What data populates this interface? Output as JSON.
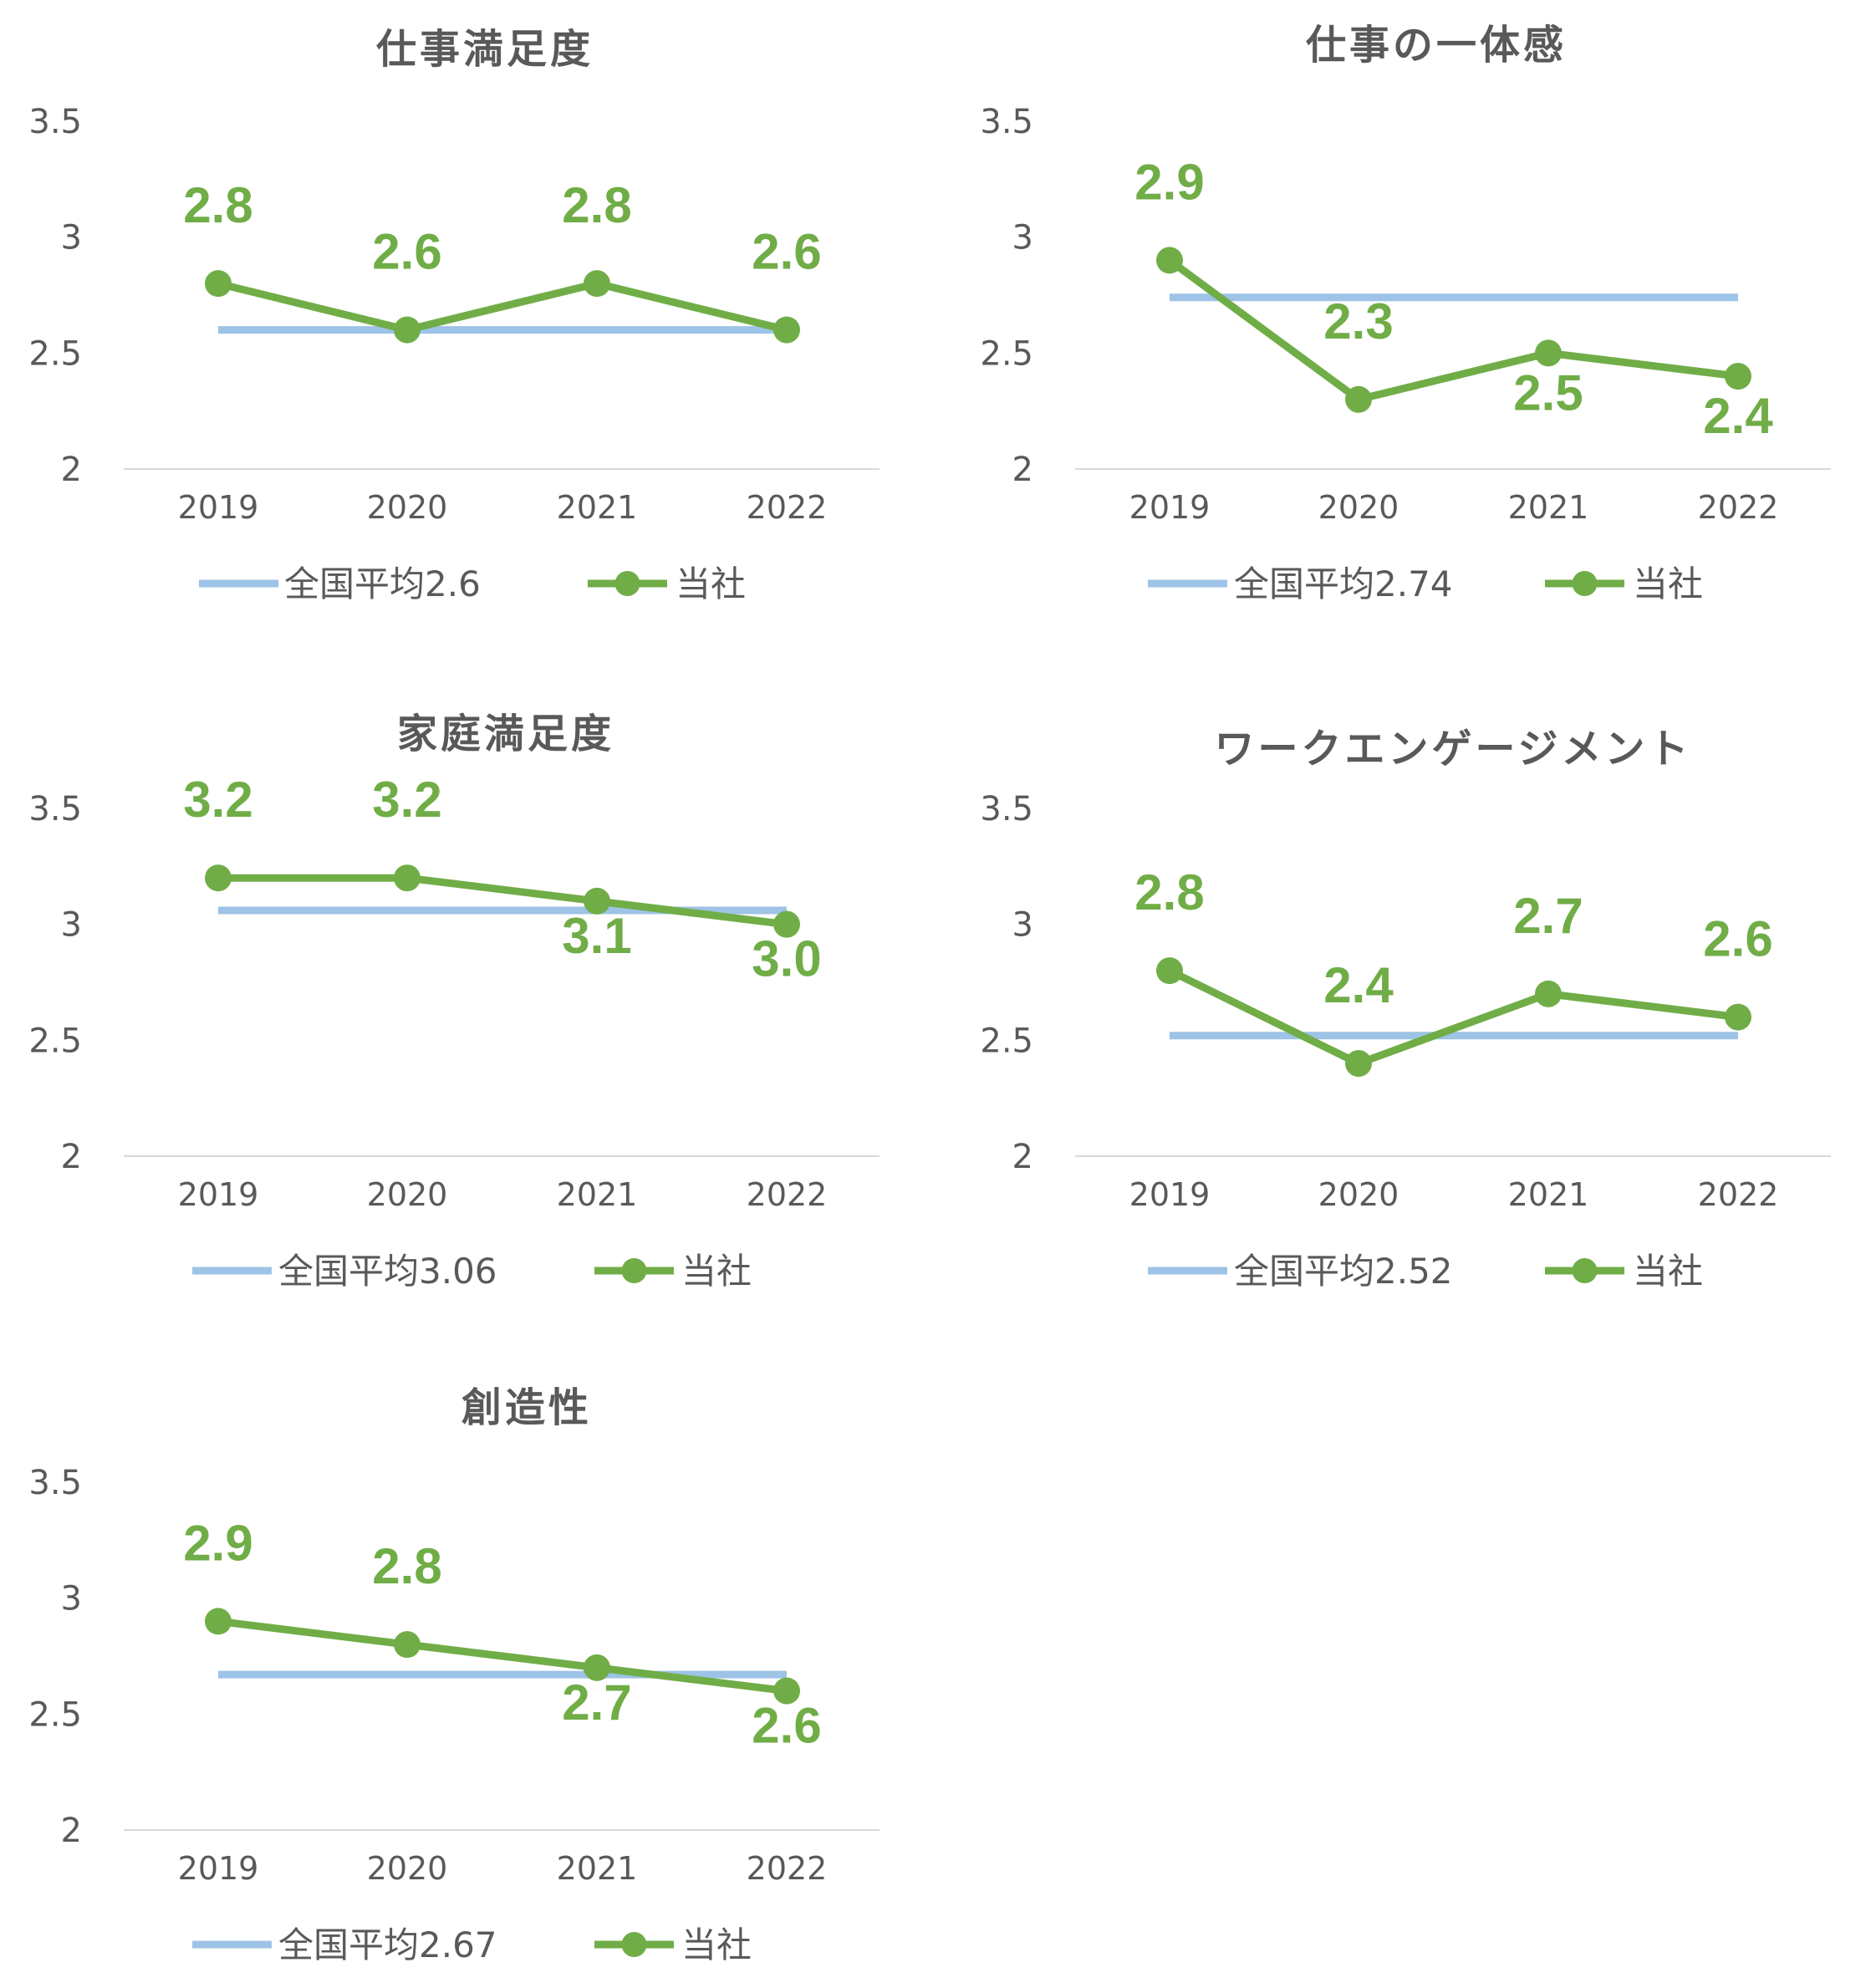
{
  "chart_data": [
    {
      "type": "line",
      "title": "仕事満足度",
      "categories": [
        "2019",
        "2020",
        "2021",
        "2022"
      ],
      "ylim": [
        2,
        3.5
      ],
      "yticks": [
        "2",
        "2.5",
        "3",
        "3.5"
      ],
      "series": [
        {
          "name": "全国平均2.6",
          "values": [
            2.6,
            2.6,
            2.6,
            2.6
          ],
          "color": "#9dc3e6"
        },
        {
          "name": "当社",
          "values": [
            2.8,
            2.6,
            2.8,
            2.6
          ],
          "labels": [
            "2.8",
            "2.6",
            "2.8",
            "2.6"
          ],
          "color": "#70ad47"
        }
      ],
      "legend": "bottom",
      "grid": false
    },
    {
      "type": "line",
      "title": "仕事の一体感",
      "categories": [
        "2019",
        "2020",
        "2021",
        "2022"
      ],
      "ylim": [
        2,
        3.5
      ],
      "yticks": [
        "2",
        "2.5",
        "3",
        "3.5"
      ],
      "series": [
        {
          "name": "全国平均2.74",
          "values": [
            2.74,
            2.74,
            2.74,
            2.74
          ],
          "color": "#9dc3e6"
        },
        {
          "name": "当社",
          "values": [
            2.9,
            2.3,
            2.5,
            2.4
          ],
          "labels": [
            "2.9",
            "2.3",
            "2.5",
            "2.4"
          ],
          "color": "#70ad47"
        }
      ],
      "legend": "bottom",
      "grid": false
    },
    {
      "type": "line",
      "title": "家庭満足度",
      "categories": [
        "2019",
        "2020",
        "2021",
        "2022"
      ],
      "ylim": [
        2,
        3.5
      ],
      "yticks": [
        "2",
        "2.5",
        "3",
        "3.5"
      ],
      "series": [
        {
          "name": "全国平均3.06",
          "values": [
            3.06,
            3.06,
            3.06,
            3.06
          ],
          "color": "#9dc3e6"
        },
        {
          "name": "当社",
          "values": [
            3.2,
            3.2,
            3.1,
            3.0
          ],
          "labels": [
            "3.2",
            "3.2",
            "3.1",
            "3.0"
          ],
          "color": "#70ad47"
        }
      ],
      "legend": "bottom",
      "grid": false
    },
    {
      "type": "line",
      "title": "ワークエンゲージメント",
      "categories": [
        "2019",
        "2020",
        "2021",
        "2022"
      ],
      "ylim": [
        2,
        3.5
      ],
      "yticks": [
        "2",
        "2.5",
        "3",
        "3.5"
      ],
      "series": [
        {
          "name": "全国平均2.52",
          "values": [
            2.52,
            2.52,
            2.52,
            2.52
          ],
          "color": "#9dc3e6"
        },
        {
          "name": "当社",
          "values": [
            2.8,
            2.4,
            2.7,
            2.6
          ],
          "labels": [
            "2.8",
            "2.4",
            "2.7",
            "2.6"
          ],
          "color": "#70ad47"
        }
      ],
      "legend": "bottom",
      "grid": false
    },
    {
      "type": "line",
      "title": "創造性",
      "categories": [
        "2019",
        "2020",
        "2021",
        "2022"
      ],
      "ylim": [
        2,
        3.5
      ],
      "yticks": [
        "2",
        "2.5",
        "3",
        "3.5"
      ],
      "series": [
        {
          "name": "全国平均2.67",
          "values": [
            2.67,
            2.67,
            2.67,
            2.67
          ],
          "color": "#9dc3e6"
        },
        {
          "name": "当社",
          "values": [
            2.9,
            2.8,
            2.7,
            2.6
          ],
          "labels": [
            "2.9",
            "2.8",
            "2.7",
            "2.6"
          ],
          "color": "#70ad47"
        }
      ],
      "legend": "bottom",
      "grid": false
    }
  ]
}
